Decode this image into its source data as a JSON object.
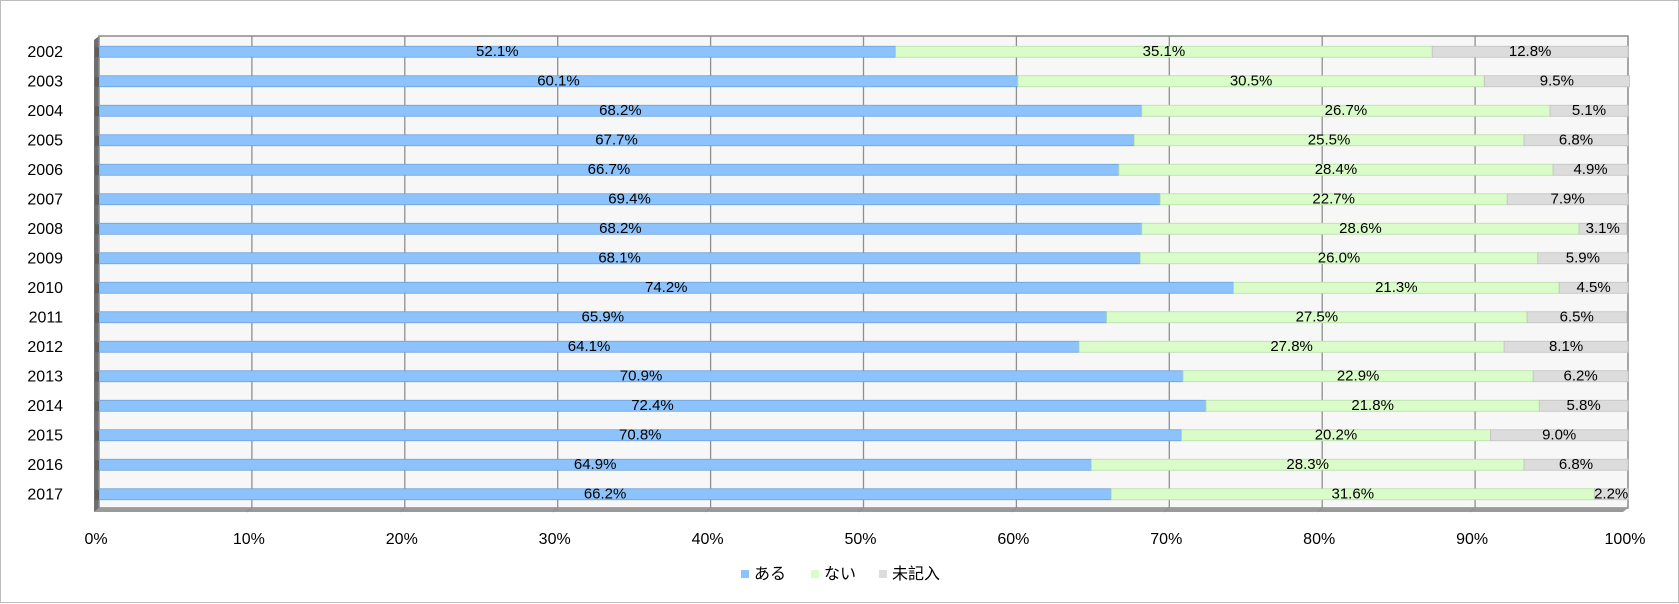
{
  "chart_data": {
    "type": "bar",
    "orientation": "horizontal",
    "stacked": "percent",
    "categories": [
      "2002",
      "2003",
      "2004",
      "2005",
      "2006",
      "2007",
      "2008",
      "2009",
      "2010",
      "2011",
      "2012",
      "2013",
      "2014",
      "2015",
      "2016",
      "2017"
    ],
    "series": [
      {
        "name": "ある",
        "color": "#8dc3fc",
        "values": [
          52.1,
          60.1,
          68.2,
          67.7,
          66.7,
          69.4,
          68.2,
          68.1,
          74.2,
          65.9,
          64.1,
          70.9,
          72.4,
          70.8,
          64.9,
          66.2
        ],
        "labels": [
          "52.1%",
          "60.1%",
          "68.2%",
          "67.7%",
          "66.7%",
          "69.4%",
          "68.2%",
          "68.1%",
          "74.2%",
          "65.9%",
          "64.1%",
          "70.9%",
          "72.4%",
          "70.8%",
          "64.9%",
          "66.2%"
        ]
      },
      {
        "name": "ない",
        "color": "#d9fcc9",
        "values": [
          35.1,
          30.5,
          26.7,
          25.5,
          28.4,
          22.7,
          28.6,
          26.0,
          21.3,
          27.5,
          27.8,
          22.9,
          21.8,
          20.2,
          28.3,
          31.6
        ],
        "labels": [
          "35.1%",
          "30.5%",
          "26.7%",
          "25.5%",
          "28.4%",
          "22.7%",
          "28.6%",
          "26.0%",
          "21.3%",
          "27.5%",
          "27.8%",
          "22.9%",
          "21.8%",
          "20.2%",
          "28.3%",
          "31.6%"
        ]
      },
      {
        "name": "未記入",
        "color": "#dcdcdc",
        "values": [
          12.8,
          9.5,
          5.1,
          6.8,
          4.9,
          7.9,
          3.1,
          5.9,
          4.5,
          6.5,
          8.1,
          6.2,
          5.8,
          9.0,
          6.8,
          2.2
        ],
        "labels": [
          "12.8%",
          "9.5%",
          "5.1%",
          "6.8%",
          "4.9%",
          "7.9%",
          "3.1%",
          "5.9%",
          "4.5%",
          "6.5%",
          "8.1%",
          "6.2%",
          "5.8%",
          "9.0%",
          "6.8%",
          "2.2%"
        ]
      }
    ],
    "x_ticks": [
      "0%",
      "10%",
      "20%",
      "30%",
      "40%",
      "50%",
      "60%",
      "70%",
      "80%",
      "90%",
      "100%"
    ],
    "xlim": [
      0,
      100
    ],
    "grid": true,
    "legend_position": "bottom",
    "title": "",
    "xlabel": "",
    "ylabel": ""
  }
}
